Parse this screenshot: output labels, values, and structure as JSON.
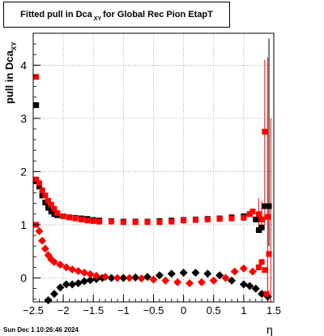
{
  "chart_data": {
    "type": "scatter",
    "title": {
      "main": "Fitted pull in Dca",
      "sub": "XY",
      "rest": "for Global Rec Pion EtapT"
    },
    "ylabel": {
      "main": "pull in Dca",
      "sub": "XY"
    },
    "xlabel": "η",
    "xlim": [
      -2.5,
      1.5
    ],
    "ylim": [
      -0.45,
      4.6
    ],
    "x_ticks": [
      "−2.5",
      "−2",
      "−1.5",
      "−1",
      "−0.5",
      "0",
      "0.5",
      "1",
      "1.5"
    ],
    "x_tick_values": [
      -2.5,
      -2,
      -1.5,
      -1,
      -0.5,
      0,
      0.5,
      1,
      1.5
    ],
    "y_ticks": [
      "0",
      "1",
      "2",
      "3",
      "4"
    ],
    "y_tick_values": [
      0,
      1,
      2,
      3,
      4
    ],
    "grid": true,
    "series": [
      {
        "color": "#000000",
        "marker": "square",
        "points": [
          {
            "x": -2.45,
            "y": 3.25
          },
          {
            "x": -2.45,
            "y": 1.82
          },
          {
            "x": -2.4,
            "y": 1.72
          },
          {
            "x": -2.35,
            "y": 1.55
          },
          {
            "x": -2.3,
            "y": 1.42
          },
          {
            "x": -2.25,
            "y": 1.32
          },
          {
            "x": -2.2,
            "y": 1.25
          },
          {
            "x": -2.15,
            "y": 1.2
          },
          {
            "x": -2.1,
            "y": 1.18
          },
          {
            "x": -2.0,
            "y": 1.16
          },
          {
            "x": -1.9,
            "y": 1.14
          },
          {
            "x": -1.8,
            "y": 1.13
          },
          {
            "x": -1.7,
            "y": 1.12
          },
          {
            "x": -1.6,
            "y": 1.11
          },
          {
            "x": -1.5,
            "y": 1.09
          },
          {
            "x": -1.4,
            "y": 1.08
          },
          {
            "x": -1.2,
            "y": 1.07
          },
          {
            "x": -1.0,
            "y": 1.06
          },
          {
            "x": -0.8,
            "y": 1.06
          },
          {
            "x": -0.6,
            "y": 1.06
          },
          {
            "x": -0.4,
            "y": 1.07
          },
          {
            "x": -0.2,
            "y": 1.08
          },
          {
            "x": 0.0,
            "y": 1.09
          },
          {
            "x": 0.2,
            "y": 1.1
          },
          {
            "x": 0.4,
            "y": 1.11
          },
          {
            "x": 0.6,
            "y": 1.12
          },
          {
            "x": 0.8,
            "y": 1.14
          },
          {
            "x": 1.0,
            "y": 1.16
          },
          {
            "x": 1.1,
            "y": 1.2
          },
          {
            "x": 1.2,
            "y": 1.1
          },
          {
            "x": 1.25,
            "y": 0.9
          },
          {
            "x": 1.3,
            "y": 0.95
          },
          {
            "x": 1.35,
            "y": 1.35
          },
          {
            "x": 1.42,
            "y": 1.35
          },
          {
            "x": -2.25,
            "y": -0.42
          },
          {
            "x": -2.15,
            "y": -0.3
          },
          {
            "x": -2.05,
            "y": -0.18
          },
          {
            "x": -1.95,
            "y": -0.12
          },
          {
            "x": -1.85,
            "y": -0.12
          },
          {
            "x": -1.75,
            "y": -0.1
          },
          {
            "x": -1.65,
            "y": -0.06
          },
          {
            "x": -1.55,
            "y": -0.04
          },
          {
            "x": -1.45,
            "y": -0.02
          },
          {
            "x": -1.35,
            "y": 0.0
          },
          {
            "x": -1.2,
            "y": 0.0
          },
          {
            "x": -1.0,
            "y": 0.0
          },
          {
            "x": -0.8,
            "y": 0.01
          },
          {
            "x": -0.6,
            "y": 0.02
          },
          {
            "x": -0.4,
            "y": 0.05
          },
          {
            "x": -0.2,
            "y": 0.08
          },
          {
            "x": 0.0,
            "y": 0.1
          },
          {
            "x": 0.2,
            "y": 0.1
          },
          {
            "x": 0.4,
            "y": 0.08
          },
          {
            "x": 0.6,
            "y": 0.05
          },
          {
            "x": 0.8,
            "y": -0.05
          },
          {
            "x": 1.0,
            "y": -0.12
          },
          {
            "x": 1.1,
            "y": -0.15
          },
          {
            "x": 1.2,
            "y": -0.2
          },
          {
            "x": 1.3,
            "y": -0.3
          },
          {
            "x": 1.4,
            "y": -0.35
          }
        ]
      },
      {
        "color": "#ff0000",
        "marker": "square",
        "points": [
          {
            "x": -2.45,
            "y": 3.78
          },
          {
            "x": -2.45,
            "y": 1.85
          },
          {
            "x": -2.4,
            "y": 1.78
          },
          {
            "x": -2.35,
            "y": 1.65
          },
          {
            "x": -2.3,
            "y": 1.55
          },
          {
            "x": -2.25,
            "y": 1.45
          },
          {
            "x": -2.2,
            "y": 1.38
          },
          {
            "x": -2.15,
            "y": 1.3
          },
          {
            "x": -2.1,
            "y": 1.22
          },
          {
            "x": -2.0,
            "y": 1.16
          },
          {
            "x": -1.9,
            "y": 1.14
          },
          {
            "x": -1.8,
            "y": 1.12
          },
          {
            "x": -1.7,
            "y": 1.1
          },
          {
            "x": -1.6,
            "y": 1.08
          },
          {
            "x": -1.5,
            "y": 1.07
          },
          {
            "x": -1.4,
            "y": 1.06
          },
          {
            "x": -1.2,
            "y": 1.06
          },
          {
            "x": -1.0,
            "y": 1.05
          },
          {
            "x": -0.8,
            "y": 1.05
          },
          {
            "x": -0.6,
            "y": 1.05
          },
          {
            "x": -0.4,
            "y": 1.05
          },
          {
            "x": -0.2,
            "y": 1.06
          },
          {
            "x": 0.0,
            "y": 1.08
          },
          {
            "x": 0.2,
            "y": 1.09
          },
          {
            "x": 0.4,
            "y": 1.1
          },
          {
            "x": 0.6,
            "y": 1.11
          },
          {
            "x": 0.8,
            "y": 1.12
          },
          {
            "x": 1.0,
            "y": 1.13
          },
          {
            "x": 1.1,
            "y": 1.2
          },
          {
            "x": 1.15,
            "y": 1.25
          },
          {
            "x": 1.25,
            "y": 1.2
          },
          {
            "x": 1.3,
            "y": 1.1
          },
          {
            "x": 1.35,
            "y": 2.75
          },
          {
            "x": 1.4,
            "y": 1.15
          },
          {
            "x": -2.45,
            "y": 1.0
          },
          {
            "x": -2.4,
            "y": 0.88
          },
          {
            "x": -2.35,
            "y": 0.7
          },
          {
            "x": -2.3,
            "y": 0.55
          },
          {
            "x": -2.25,
            "y": 0.43
          },
          {
            "x": -2.2,
            "y": 0.35
          },
          {
            "x": -2.15,
            "y": 0.3
          },
          {
            "x": -2.05,
            "y": 0.25
          },
          {
            "x": -1.95,
            "y": 0.2
          },
          {
            "x": -1.85,
            "y": 0.16
          },
          {
            "x": -1.75,
            "y": 0.13
          },
          {
            "x": -1.65,
            "y": 0.1
          },
          {
            "x": -1.55,
            "y": 0.07
          },
          {
            "x": -1.45,
            "y": 0.04
          },
          {
            "x": -1.3,
            "y": 0.02
          },
          {
            "x": -1.1,
            "y": 0.0
          },
          {
            "x": -0.9,
            "y": 0.0
          },
          {
            "x": -0.7,
            "y": -0.01
          },
          {
            "x": -0.5,
            "y": -0.03
          },
          {
            "x": -0.3,
            "y": -0.05
          },
          {
            "x": -0.1,
            "y": -0.08
          },
          {
            "x": 0.1,
            "y": -0.1
          },
          {
            "x": 0.3,
            "y": -0.08
          },
          {
            "x": 0.5,
            "y": -0.05
          },
          {
            "x": 0.7,
            "y": 0.0
          },
          {
            "x": 0.85,
            "y": 0.12
          },
          {
            "x": 1.0,
            "y": 0.18
          },
          {
            "x": 1.15,
            "y": 0.12
          },
          {
            "x": 1.25,
            "y": 0.2
          },
          {
            "x": 1.3,
            "y": 0.3
          },
          {
            "x": 1.35,
            "y": 0.15
          },
          {
            "x": 1.42,
            "y": 0.45
          },
          {
            "x": 1.38,
            "y": -0.3
          }
        ]
      }
    ],
    "error_bars": [
      {
        "x": 1.35,
        "y": 2.75,
        "lo": 1.0,
        "hi": 4.1,
        "color": "#ff0000"
      },
      {
        "x": 1.4,
        "y": 1.15,
        "lo": -0.45,
        "hi": 4.15,
        "color": "#ff0000"
      },
      {
        "x": 1.42,
        "y": 1.35,
        "lo": 0.6,
        "hi": 4.5,
        "color": "#000000"
      },
      {
        "x": 1.45,
        "y": 0.45,
        "lo": -0.45,
        "hi": 3.0,
        "color": "#ff0000"
      },
      {
        "x": 1.25,
        "y": 1.2,
        "lo": 0.95,
        "hi": 1.5,
        "color": "#ff0000"
      },
      {
        "x": 1.3,
        "y": 1.1,
        "lo": 0.85,
        "hi": 1.45,
        "color": "#ff0000"
      }
    ]
  },
  "footer": "Sun Dec  1 10:26:46 2024"
}
